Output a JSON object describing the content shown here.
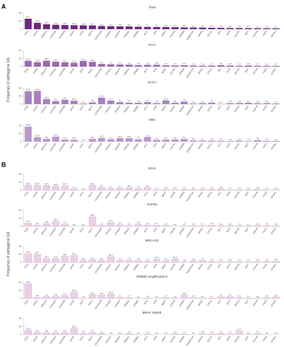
{
  "panels": [
    {
      "label": "A",
      "y_label": "Frequency of pathogenic GA"
    },
    {
      "label": "B",
      "y_label": "Frequency of pathogenic GA"
    }
  ],
  "chart_data": [
    {
      "type": "bar",
      "panel": 0,
      "title": "Total",
      "color": "#6b2a7e",
      "ylim": [
        0,
        50
      ],
      "yticks": [
        0,
        25,
        50
      ],
      "categories": [
        "TP53",
        "KRAS",
        "ARID1A",
        "CDKN2A",
        "CDKN2B",
        "MTAP",
        "IDH1",
        "BAP1",
        "CDKN2AB",
        "PIK3CA",
        "SMAD4",
        "PBRM1",
        "ERBB2",
        "MYC",
        "ATM",
        "BRAF",
        "FGFR2",
        "ERBB3",
        "SMARCA4",
        "MDM2",
        "STK11",
        "NF1",
        "IDH2",
        "RNF43",
        "MET",
        "FGF19",
        "FGF3",
        "NTRK1"
      ],
      "values": [
        32.7,
        19.8,
        15.2,
        13.6,
        12.9,
        12.5,
        11.8,
        11.7,
        9.8,
        9.3,
        8.8,
        8.4,
        7.5,
        7.1,
        6.7,
        6.5,
        6.1,
        5.5,
        5.2,
        4.9,
        4.4,
        4.1,
        3.6,
        3.5,
        3.3,
        3.1,
        2.9,
        2.7
      ],
      "value_labels": [
        "32.7",
        "19.8",
        "15.2",
        "13.6",
        "12.9",
        "12.5",
        "11.8",
        "11.7",
        "9.8",
        "9.3",
        "8.8",
        "8.4",
        "7.5",
        "7.1",
        "6.7",
        "6.5",
        "6.1",
        "5.5",
        "5.2",
        "4.9",
        "4.4",
        "4.1",
        "3.6",
        "3.5",
        "3.3",
        "3.1",
        "2.9",
        "2.7"
      ]
    },
    {
      "type": "bar",
      "panel": 0,
      "title": "iCCA",
      "color": "#9b6ab0",
      "ylim": [
        0,
        50
      ],
      "yticks": [
        0,
        25,
        50
      ],
      "categories": [
        "TP53",
        "KRAS",
        "ARID1A",
        "CDKN2A",
        "CDKN2B",
        "MTAP",
        "IDH1",
        "BAP1",
        "CDKN2AB",
        "PIK3CA",
        "SMAD4",
        "PBRM1",
        "ERBB2",
        "MYC",
        "ATM",
        "BRAF",
        "FGFR2",
        "ERBB3",
        "SMARCA4",
        "MDM2",
        "STK11",
        "NF1",
        "IDH2",
        "RNF43",
        "MET",
        "FGF19",
        "FGF3",
        "NTRK1"
      ],
      "values": [
        18.3,
        13.9,
        18.6,
        15.5,
        13.7,
        11.9,
        17.9,
        14.8,
        8.4,
        7.3,
        6.6,
        6.2,
        4.8,
        5.4,
        5.9,
        3.9,
        3.7,
        4.4,
        3.2,
        2.9,
        3.1,
        4.9,
        3.5,
        2.6,
        3.6,
        2.7,
        2.6,
        2.3
      ],
      "value_labels": [
        "18.3",
        "13.9",
        "18.6",
        "15.5",
        "13.7",
        "11.9",
        "17.9",
        "14.8",
        "8.4",
        "7.3",
        "6.6",
        "6.2",
        "4.8",
        "5.4",
        "5.9",
        "3.9",
        "3.7",
        "4.4",
        "3.2",
        "2.9",
        "3.1",
        "4.9",
        "3.5",
        "2.6",
        "3.6",
        "2.7",
        "2.6",
        "2.3"
      ]
    },
    {
      "type": "bar",
      "panel": 0,
      "title": "eCCA",
      "color": "#a880c0",
      "ylim": [
        0,
        50
      ],
      "yticks": [
        0,
        25,
        50
      ],
      "categories": [
        "TP53",
        "KRAS",
        "ARID1A",
        "CDKN2A",
        "CDKN2B",
        "MTAP",
        "IDH1",
        "BAP1",
        "CDKN2AB",
        "PIK3CA",
        "SMAD4",
        "PBRM1",
        "ERBB2",
        "MYC",
        "ATM",
        "BRAF",
        "FGFR2",
        "ERBB3",
        "SMARCA4",
        "MDM2",
        "STK11",
        "NF1",
        "IDH2",
        "RNF43",
        "MET",
        "FGF19",
        "FGF3",
        "NTRK1"
      ],
      "values": [
        40.4,
        41.3,
        15.6,
        9.4,
        13.4,
        10.5,
        1.9,
        5.6,
        20.1,
        11.1,
        6.1,
        4.5,
        4.2,
        6.4,
        3.4,
        11.6,
        4.3,
        7.9,
        2.1,
        3.2,
        4.5,
        0.7,
        3.3,
        3.6,
        4.2,
        2.8,
        3.3,
        2.1
      ],
      "value_labels": [
        "40.4",
        "41.3",
        "15.6",
        "9.4",
        "13.4",
        "10.5",
        "1.9",
        "5.6",
        "20.1",
        "11.1",
        "6.1",
        "4.5",
        "4.2",
        "6.4",
        "3.4",
        "11.6",
        "4.3",
        "7.9",
        "2.1",
        "3.2",
        "4.5",
        "0.7",
        "3.3",
        "3.6",
        "4.2",
        "2.8",
        "3.3",
        "2.1"
      ]
    },
    {
      "type": "bar",
      "panel": 0,
      "title": "GBC",
      "color": "#b996cb",
      "ylim": [
        0,
        50
      ],
      "yticks": [
        0,
        25,
        50
      ],
      "categories": [
        "TP53",
        "KRAS",
        "ARID1A",
        "CDKN2A",
        "CDKN2B",
        "MTAP",
        "IDH1",
        "BAP1",
        "CDKN2AB",
        "PIK3CA",
        "SMAD4",
        "PBRM1",
        "ERBB2",
        "MYC",
        "ATM",
        "BRAF",
        "FGFR2",
        "ERBB3",
        "SMARCA4",
        "MDM2",
        "STK11",
        "NF1",
        "IDH2",
        "RNF43",
        "MET",
        "FGF19",
        "FGF3",
        "NTRK1"
      ],
      "values": [
        46.9,
        13.8,
        8.4,
        15.6,
        6.3,
        5.8,
        0.4,
        8.4,
        11.5,
        7.6,
        10.6,
        10.6,
        7.2,
        14.1,
        5.4,
        6.2,
        6.8,
        8.2,
        3.6,
        3.1,
        2.9,
        2.6,
        1.9,
        3.2,
        1.6,
        4.5,
        2.3,
        2.1
      ],
      "value_labels": [
        "46.9",
        "13.8",
        "8.4",
        "15.6",
        "6.3",
        "5.8",
        "0.4",
        "8.4",
        "11.5",
        "7.6",
        "10.6",
        "10.6",
        "7.2",
        "14.1",
        "5.4",
        "6.2",
        "6.8",
        "8.2",
        "3.6",
        "3.1",
        "2.9",
        "2.6",
        "1.9",
        "3.2",
        "1.6",
        "4.5",
        "2.3",
        "2.1"
      ]
    },
    {
      "type": "bar",
      "panel": 1,
      "title": "IDH1",
      "color": "#ebcfe8",
      "ylim": [
        0,
        50
      ],
      "yticks": [
        0,
        25,
        50
      ],
      "categories": [
        "TP53",
        "KRAS",
        "ARID1A",
        "CDKN2A",
        "CDKN2B",
        "MTAP",
        "IDH1",
        "BAP1",
        "CDKN2AB",
        "PIK3CA",
        "SMAD4",
        "PBRM1",
        "ERBB2",
        "MYC",
        "ATM",
        "BRAF",
        "FGFR2",
        "ERBB3",
        "SMARCA4",
        "MDM2",
        "STK11",
        "NF1",
        "IDH2",
        "RNF43",
        "MET",
        "FGF19",
        "FGF3",
        "NTRK1"
      ],
      "values": [
        15.5,
        15.5,
        14.5,
        12.9,
        14.2,
        4.2,
        0,
        15.2,
        9.3,
        5.2,
        6.7,
        8.2,
        4.7,
        8.6,
        0.4,
        2.6,
        2.4,
        3.1,
        2.1,
        3.2,
        2.3,
        4.3,
        1.7,
        1.5,
        0.9,
        2.8,
        1.1,
        0.4
      ],
      "value_labels": [
        "15.5",
        "15.5",
        "14.5",
        "12.9",
        "14.2",
        "4.2",
        "0.0",
        "15.2",
        "9.3",
        "5.2",
        "6.7",
        "8.2",
        "4.7",
        "8.6",
        "0.4",
        "2.6",
        "2.4",
        "3.1",
        "2.1",
        "3.2",
        "2.3",
        "4.3",
        "1.7",
        "1.5",
        "0.9",
        "2.8",
        "1.1",
        "0.4"
      ]
    },
    {
      "type": "bar",
      "panel": 1,
      "title": "FGFR2",
      "color": "#ebcfe8",
      "ylim": [
        0,
        50
      ],
      "yticks": [
        0,
        25,
        50
      ],
      "categories": [
        "TP53",
        "KRAS",
        "ARID1A",
        "CDKN2A",
        "CDKN2B",
        "MTAP",
        "IDH1",
        "BAP1",
        "CDKN2AB",
        "PIK3CA",
        "SMAD4",
        "PBRM1",
        "ERBB2",
        "MYC",
        "ATM",
        "BRAF",
        "FGFR2",
        "ERBB3",
        "SMARCA4",
        "MDM2",
        "STK11",
        "NF1",
        "IDH2",
        "RNF43",
        "MET",
        "FGF19",
        "FGF3",
        "NTRK1"
      ],
      "values": [
        9.9,
        3.9,
        8.6,
        15.4,
        7.3,
        0,
        0,
        29.8,
        3.2,
        12.1,
        5.4,
        2.1,
        6.8,
        4.2,
        3.7,
        3.2,
        0,
        1.6,
        1.9,
        2.7,
        3.4,
        2.2,
        2.1,
        1.4,
        1.1,
        3.1,
        2.4,
        1.8
      ],
      "value_labels": [
        "9.9",
        "3.9",
        "8.6",
        "15.4",
        "7.3",
        "0.0",
        "0.0",
        "29.8",
        "3.2",
        "12.1",
        "5.4",
        "2.1",
        "6.8",
        "4.2",
        "3.7",
        "3.2",
        "0.0",
        "1.6",
        "1.9",
        "2.7",
        "3.4",
        "2.2",
        "2.1",
        "1.4",
        "1.1",
        "3.1",
        "2.4",
        "1.8"
      ]
    },
    {
      "type": "bar",
      "panel": 1,
      "title": "BRCA1/2",
      "color": "#ebcfe8",
      "ylim": [
        0,
        50
      ],
      "yticks": [
        0,
        25,
        50
      ],
      "categories": [
        "TP53",
        "KRAS",
        "ARID1A",
        "CDKN2A",
        "CDKN2B",
        "MTAP",
        "IDH1",
        "BAP1",
        "CDKN2AB",
        "PIK3CA",
        "SMAD4",
        "PBRM1",
        "ERBB2",
        "MYC",
        "ATM",
        "BRAF",
        "FGFR2",
        "ERBB3",
        "SMARCA4",
        "MDM2",
        "STK11",
        "NF1",
        "IDH2",
        "RNF43",
        "MET",
        "FGF19",
        "FGF3",
        "NTRK1"
      ],
      "values": [
        27.3,
        25.7,
        12.1,
        11.8,
        18.9,
        22.1,
        6.5,
        9.1,
        6.5,
        18.2,
        7.7,
        7.3,
        6.5,
        3.9,
        10.3,
        6.2,
        10.4,
        1.9,
        5.2,
        6.7,
        3.4,
        2.3,
        2.6,
        1.9,
        1.3,
        2.5,
        3.1,
        3.9
      ],
      "value_labels": [
        "27.3",
        "25.7",
        "12.1",
        "11.8",
        "18.9",
        "22.1",
        "6.5",
        "9.1",
        "6.5",
        "18.2",
        "7.7",
        "7.3",
        "6.5",
        "3.9",
        "10.3",
        "6.2",
        "10.4",
        "1.9",
        "5.2",
        "6.7",
        "3.4",
        "2.3",
        "2.6",
        "1.9",
        "1.3",
        "2.5",
        "3.1",
        "3.9"
      ]
    },
    {
      "type": "bar",
      "panel": 1,
      "title": "ERBB2 amplifications",
      "color": "#ebcfe8",
      "ylim": [
        0,
        50
      ],
      "yticks": [
        0,
        25,
        50
      ],
      "categories": [
        "TP53",
        "KRAS",
        "ARID1A",
        "CDKN2A",
        "CDKN2B",
        "MTAP",
        "IDH1",
        "BAP1",
        "CDKN2AB",
        "PIK3CA",
        "SMAD4",
        "PBRM1",
        "ERBB2",
        "MYC",
        "ATM",
        "BRAF",
        "FGFR2",
        "ERBB3",
        "SMARCA4",
        "MDM2",
        "STK11",
        "NF1",
        "IDH2",
        "RNF43",
        "MET",
        "FGF19",
        "FGF3",
        "NTRK1"
      ],
      "values": [
        45.9,
        3.8,
        6.1,
        5.8,
        9.7,
        20.3,
        0.4,
        11.8,
        10.2,
        14.7,
        3.2,
        2.7,
        0,
        1.6,
        0,
        2.7,
        0.4,
        10.8,
        2.4,
        2.1,
        1.7,
        5.2,
        6.1,
        3.2,
        1.4,
        0.9,
        2.8,
        5.2
      ],
      "value_labels": [
        "45.9",
        "3.8",
        "6.1",
        "5.8",
        "9.7",
        "20.3",
        "0.4",
        "11.8",
        "10.2",
        "14.7",
        "3.2",
        "2.7",
        "0.0",
        "1.6",
        "0.0",
        "2.7",
        "0.4",
        "10.8",
        "2.4",
        "2.1",
        "1.7",
        "5.2",
        "6.1",
        "3.2",
        "1.4",
        "0.9",
        "2.8",
        "5.2"
      ]
    },
    {
      "type": "bar",
      "panel": 1,
      "title": "BRAF V600E",
      "color": "#ebcfe8",
      "ylim": [
        0,
        50
      ],
      "yticks": [
        0,
        25,
        50
      ],
      "categories": [
        "TP53",
        "KRAS",
        "ARID1A",
        "CDKN2A",
        "CDKN2B",
        "MTAP",
        "IDH1",
        "BAP1",
        "CDKN2AB",
        "PIK3CA",
        "SMAD4",
        "PBRM1",
        "ERBB2",
        "MYC",
        "ATM",
        "BRAF",
        "FGFR2",
        "ERBB3",
        "SMARCA4",
        "MDM2",
        "STK11",
        "NF1",
        "IDH2",
        "RNF43",
        "MET",
        "FGF19",
        "FGF3",
        "NTRK1"
      ],
      "values": [
        13.9,
        6.9,
        5.8,
        6.1,
        6.6,
        20.3,
        3.8,
        6.7,
        3.2,
        0,
        0,
        3.4,
        0,
        2.1,
        0,
        0,
        2.8,
        1.6,
        0,
        3.6,
        2.3,
        4.1,
        2.7,
        11.7,
        0,
        3.4,
        0,
        0
      ],
      "value_labels": [
        "13.9",
        "6.9",
        "5.8",
        "6.1",
        "6.6",
        "20.3",
        "3.8",
        "6.7",
        "3.2",
        "0.0",
        "0.0",
        "3.4",
        "0.0",
        "2.1",
        "0.0",
        "0.0",
        "2.8",
        "1.6",
        "0.0",
        "3.6",
        "2.3",
        "4.1",
        "2.7",
        "11.7",
        "0.0",
        "3.4",
        "0.0",
        "0.0"
      ]
    }
  ]
}
